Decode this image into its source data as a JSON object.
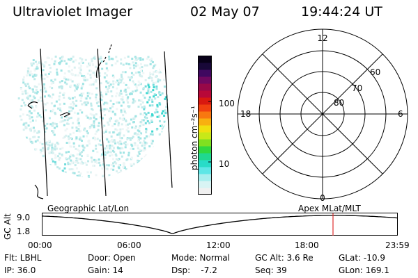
{
  "header": {
    "instrument": "Ultraviolet Imager",
    "date": "02 May 07",
    "time": "19:44:24 UT"
  },
  "colorbar": {
    "unit_label": "photon cm⁻²s⁻¹",
    "ticks": [
      "100",
      "10"
    ],
    "colors": [
      "#f0f0f0",
      "#d8f4f4",
      "#a8eeee",
      "#5ee6e6",
      "#28dcc8",
      "#20d890",
      "#30d840",
      "#80e020",
      "#c8e818",
      "#f0e010",
      "#f8b010",
      "#f87810",
      "#f04010",
      "#d81810",
      "#b80838",
      "#980848",
      "#700860",
      "#400860",
      "#180838",
      "#080018"
    ]
  },
  "polar": {
    "mlt_labels": {
      "top": "12",
      "right": "6",
      "bottom": "0",
      "left": "18"
    },
    "lat_labels": [
      "60",
      "70",
      "80"
    ]
  },
  "timeline": {
    "top_left_label": "Geographic Lat/Lon",
    "top_right_label": "Apex MLat/MLT",
    "y_axis_label": "GC Alt",
    "y_ticks": [
      "9.0",
      "1.8"
    ],
    "x_ticks": [
      "00:00",
      "06:00",
      "12:00",
      "18:00",
      "23:59"
    ],
    "marker_color": "#e03030"
  },
  "status": {
    "flt": "Flt: LBHL",
    "ip": "IP: 36.0",
    "door": "Door: Open",
    "gain": "Gain: 14",
    "mode": "Mode: Normal",
    "dsp": "Dsp:    -7.2",
    "gc_alt": "GC Alt: 3.6 Re",
    "seq": "Seq: 39",
    "glat": "GLat: -10.9",
    "glon": "GLon: 169.1"
  }
}
